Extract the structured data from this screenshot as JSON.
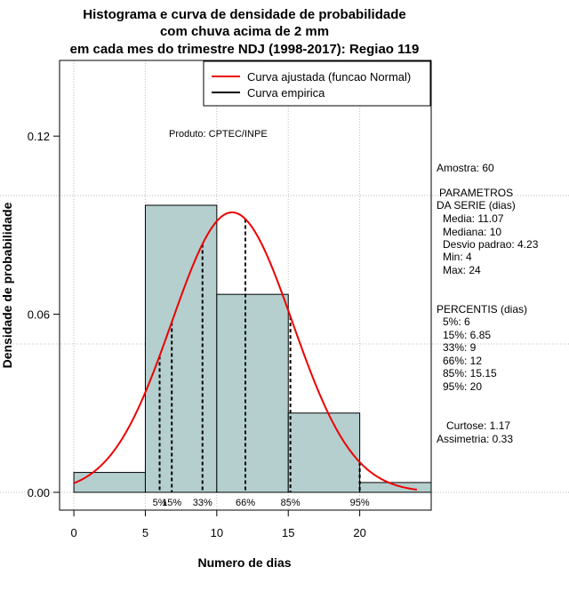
{
  "chart_data": {
    "type": "histogram",
    "title_lines": [
      "Histograma e curva de densidade de probabilidade",
      "com chuva acima de 2 mm",
      "em cada mes do trimestre NDJ (1998-2017): Regiao 119"
    ],
    "xlabel": "Numero de dias",
    "ylabel": "Densidade de probabilidade",
    "xlim": [
      -1,
      25
    ],
    "ylim": [
      -0.006,
      0.1455
    ],
    "x_ticks": [
      0,
      5,
      10,
      15,
      20
    ],
    "y_ticks": [
      0.0,
      0.06,
      0.12
    ],
    "y_tick_labels": [
      "0.00",
      "0.06",
      "0.12"
    ],
    "bins": [
      {
        "from": 0,
        "to": 5,
        "density": 0.0067
      },
      {
        "from": 5,
        "to": 10,
        "density": 0.0967
      },
      {
        "from": 10,
        "to": 15,
        "density": 0.0667
      },
      {
        "from": 15,
        "to": 20,
        "density": 0.0267
      },
      {
        "from": 20,
        "to": 25,
        "density": 0.0033
      }
    ],
    "normal_fit": {
      "mean": 11.07,
      "sd": 4.23,
      "x_from": 0,
      "x_to": 24
    },
    "percentile_lines": [
      {
        "x": 6,
        "label": "5%"
      },
      {
        "x": 6.85,
        "label": "15%"
      },
      {
        "x": 9,
        "label": "33%"
      },
      {
        "x": 12,
        "label": "66%"
      },
      {
        "x": 15.15,
        "label": "85%"
      },
      {
        "x": 20,
        "label": "95%"
      }
    ],
    "legend": [
      {
        "label": "Curva ajustada (funcao Normal)",
        "color": "#ee0000"
      },
      {
        "label": "Curva empirica",
        "color": "#000000"
      }
    ],
    "annotation": "Produto: CPTEC/INPE",
    "bar_color": "#b5cfcf",
    "curve_color": "#ee0000"
  },
  "side_panel": {
    "sample": "Amostra: 60",
    "params_title_1": "PARAMETROS",
    "params_title_2": "DA SERIE (dias)",
    "media": "Media: 11.07",
    "mediana": "Mediana: 10",
    "desvio": "Desvio padrao: 4.23",
    "min": "Min: 4",
    "max": "Max: 24",
    "perc_title": "PERCENTIS (dias)",
    "p5": "5%: 6",
    "p15": "15%: 6.85",
    "p33": "33%: 9",
    "p66": "66%: 12",
    "p85": "85%: 15.15",
    "p95": "95%: 20",
    "curtose": "Curtose: 1.17",
    "assimetria": "Assimetria: 0.33"
  }
}
